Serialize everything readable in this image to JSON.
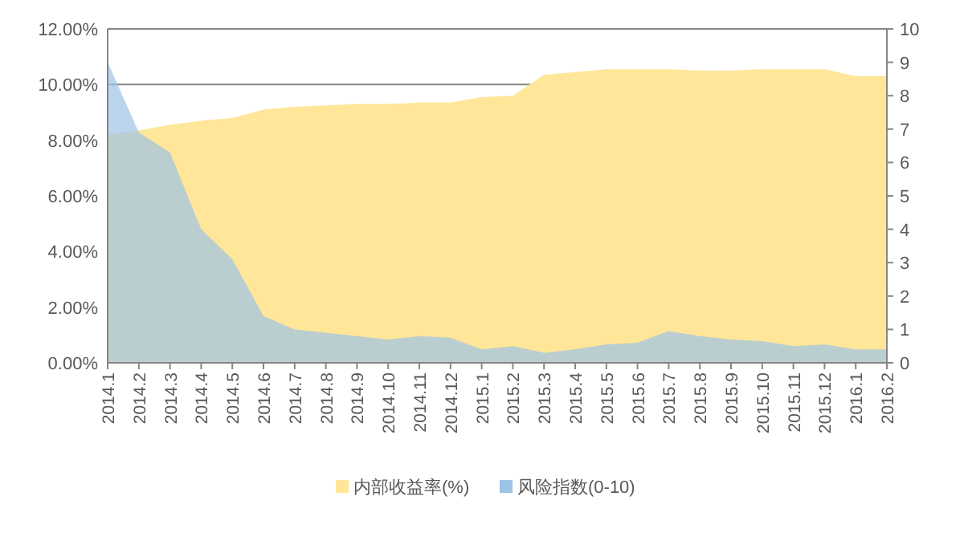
{
  "chart_data": {
    "type": "area",
    "categories": [
      "2014.1",
      "2014.2",
      "2014.3",
      "2014.4",
      "2014.5",
      "2014.6",
      "2014.7",
      "2014.8",
      "2014.9",
      "2014.10",
      "2014.11",
      "2014.12",
      "2015.1",
      "2015.2",
      "2015.3",
      "2015.4",
      "2015.5",
      "2015.6",
      "2015.7",
      "2015.8",
      "2015.9",
      "2015.10",
      "2015.11",
      "2015.12",
      "2016.1",
      "2016.2"
    ],
    "series": [
      {
        "name": "内部收益率(%)",
        "color": "#ffe699",
        "values": [
          8.2,
          8.35,
          8.55,
          8.7,
          8.8,
          9.1,
          9.2,
          9.25,
          9.3,
          9.3,
          9.35,
          9.35,
          9.55,
          9.6,
          10.35,
          10.45,
          10.55,
          10.55,
          10.55,
          10.5,
          10.5,
          10.55,
          10.55,
          10.55,
          10.3,
          10.3
        ]
      },
      {
        "name": "风险指数(0-10)",
        "color": "#9dc3e6",
        "axis": "y2",
        "values": [
          9.0,
          6.9,
          6.3,
          4.0,
          3.1,
          1.4,
          1.0,
          0.9,
          0.8,
          0.7,
          0.8,
          0.75,
          0.4,
          0.5,
          0.3,
          0.4,
          0.55,
          0.6,
          0.95,
          0.8,
          0.7,
          0.65,
          0.5,
          0.55,
          0.4,
          0.4
        ]
      }
    ],
    "ylim": [
      0,
      12
    ],
    "yticks": [
      {
        "value": 0,
        "label": "0.00%"
      },
      {
        "value": 2,
        "label": "2.00%"
      },
      {
        "value": 4,
        "label": "4.00%"
      },
      {
        "value": 6,
        "label": "6.00%"
      },
      {
        "value": 8,
        "label": "8.00%"
      },
      {
        "value": 10,
        "label": "10.00%"
      },
      {
        "value": 12,
        "label": "12.00%"
      }
    ],
    "y2lim": [
      0,
      10
    ],
    "y2ticks": [
      0,
      1,
      2,
      3,
      4,
      5,
      6,
      7,
      8,
      9,
      10
    ],
    "grid": "y",
    "legend": "bottom"
  }
}
